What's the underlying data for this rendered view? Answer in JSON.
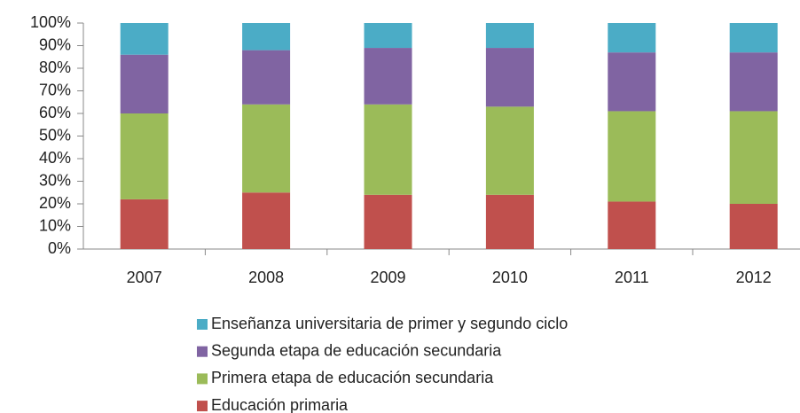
{
  "chart_data": {
    "type": "stacked_bar",
    "categories": [
      "2007",
      "2008",
      "2009",
      "2010",
      "2011",
      "2012"
    ],
    "series": [
      {
        "name": "Educación primaria",
        "color": "#c0504d",
        "values": [
          22,
          25,
          24,
          24,
          21,
          20
        ]
      },
      {
        "name": "Primera etapa de educación secundaria",
        "color": "#9bbb59",
        "values": [
          38,
          39,
          40,
          39,
          40,
          41
        ]
      },
      {
        "name": "Segunda etapa de educación secundaria",
        "color": "#8064a2",
        "values": [
          26,
          24,
          25,
          26,
          26,
          26
        ]
      },
      {
        "name": "Enseñanza universitaria de primer y segundo ciclo",
        "color": "#4bacc6",
        "values": [
          14,
          12,
          11,
          11,
          13,
          13
        ]
      }
    ],
    "ylim": [
      0,
      100
    ],
    "yticks": [
      {
        "value": 0,
        "label": "0%"
      },
      {
        "value": 10,
        "label": "10%"
      },
      {
        "value": 20,
        "label": "20%"
      },
      {
        "value": 30,
        "label": "30%"
      },
      {
        "value": 40,
        "label": "40%"
      },
      {
        "value": 50,
        "label": "50%"
      },
      {
        "value": 60,
        "label": "60%"
      },
      {
        "value": 70,
        "label": "70%"
      },
      {
        "value": 80,
        "label": "80%"
      },
      {
        "value": 90,
        "label": "90%"
      },
      {
        "value": 100,
        "label": "100%"
      }
    ],
    "grid": false,
    "legend": "bottom"
  }
}
